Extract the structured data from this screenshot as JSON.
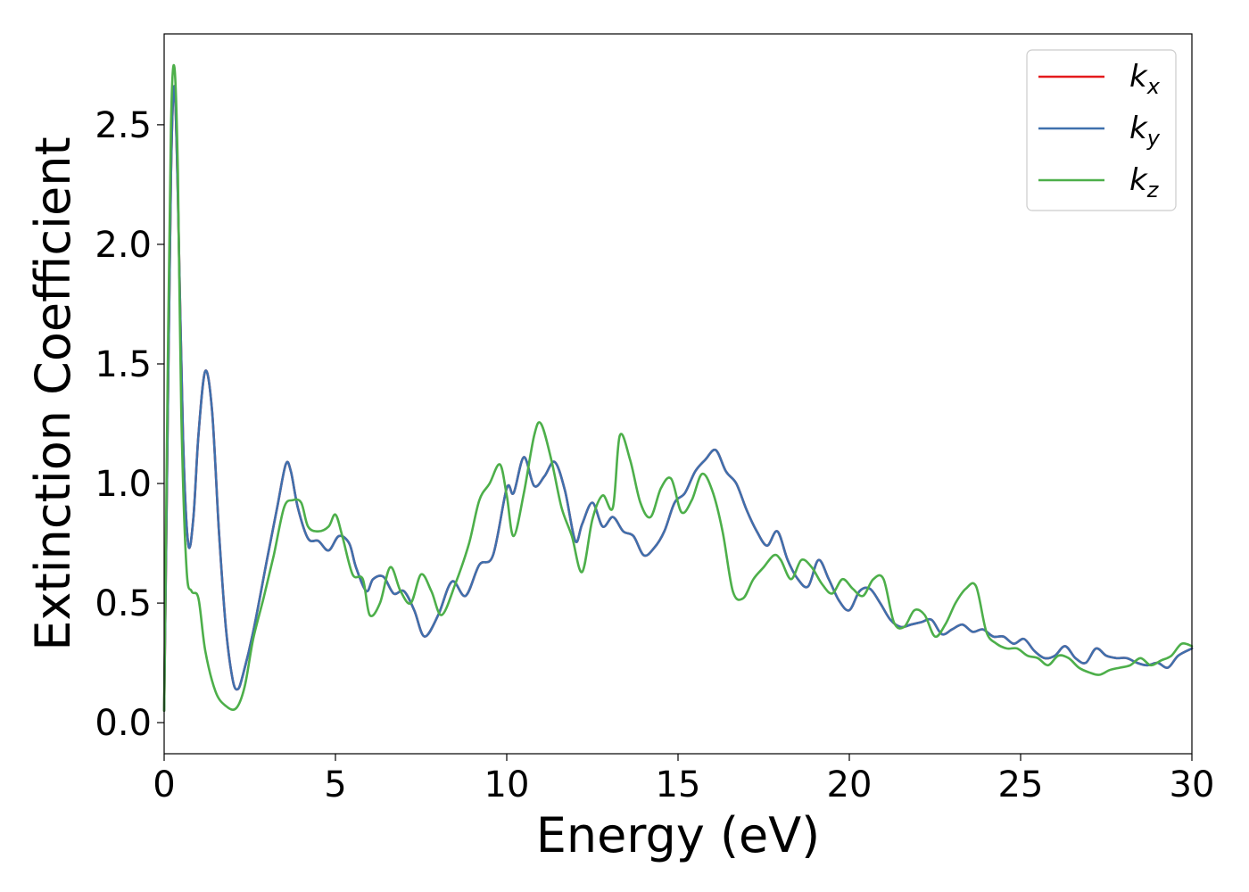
{
  "chart_data": {
    "type": "line",
    "title": "",
    "xlabel": "Energy (eV)",
    "ylabel": "Extinction Coefficient",
    "xlim": [
      0,
      30
    ],
    "ylim": [
      -0.13,
      2.88
    ],
    "xticks": [
      0,
      5,
      10,
      15,
      20,
      25,
      30
    ],
    "yticks": [
      0.0,
      0.5,
      1.0,
      1.5,
      2.0,
      2.5
    ],
    "xtick_labels": [
      "0",
      "5",
      "10",
      "15",
      "20",
      "25",
      "30"
    ],
    "ytick_labels": [
      "0.0",
      "0.5",
      "1.0",
      "1.5",
      "2.0",
      "2.5"
    ],
    "grid": false,
    "legend_position": "top-right",
    "series": [
      {
        "name": "k_x",
        "label_main": "k",
        "label_sub": "x",
        "color": "#e41a1c",
        "x": [
          0,
          0.1,
          0.2,
          0.3,
          0.4,
          0.55,
          0.7,
          0.85,
          1.0,
          1.2,
          1.4,
          1.6,
          1.8,
          2.0,
          2.15,
          2.3,
          2.6,
          3.0,
          3.3,
          3.55,
          3.7,
          3.9,
          4.2,
          4.5,
          4.8,
          5.1,
          5.4,
          5.6,
          5.9,
          6.1,
          6.4,
          6.7,
          7.0,
          7.3,
          7.6,
          8.0,
          8.4,
          8.8,
          9.2,
          9.6,
          10.0,
          10.2,
          10.5,
          10.8,
          11.1,
          11.4,
          11.7,
          12.0,
          12.2,
          12.5,
          12.8,
          13.1,
          13.4,
          13.7,
          14.0,
          14.3,
          14.6,
          14.9,
          15.2,
          15.5,
          15.8,
          16.1,
          16.4,
          16.7,
          17.0,
          17.3,
          17.6,
          17.9,
          18.2,
          18.5,
          18.8,
          19.1,
          19.4,
          19.7,
          20.0,
          20.3,
          20.6,
          20.9,
          21.2,
          21.5,
          21.8,
          22.1,
          22.4,
          22.7,
          23.0,
          23.3,
          23.6,
          23.9,
          24.2,
          24.5,
          24.8,
          25.1,
          25.4,
          25.7,
          26.0,
          26.3,
          26.6,
          26.9,
          27.2,
          27.5,
          27.8,
          28.1,
          28.4,
          28.7,
          29.0,
          29.3,
          29.6,
          30.0
        ],
        "values": [
          0.05,
          1.2,
          2.3,
          2.66,
          2.2,
          1.2,
          0.75,
          0.85,
          1.2,
          1.47,
          1.3,
          0.8,
          0.4,
          0.18,
          0.14,
          0.2,
          0.38,
          0.68,
          0.9,
          1.08,
          1.05,
          0.9,
          0.77,
          0.76,
          0.72,
          0.78,
          0.75,
          0.65,
          0.55,
          0.6,
          0.61,
          0.54,
          0.55,
          0.47,
          0.36,
          0.45,
          0.59,
          0.53,
          0.66,
          0.7,
          0.98,
          0.96,
          1.11,
          0.99,
          1.03,
          1.09,
          0.97,
          0.76,
          0.83,
          0.92,
          0.82,
          0.86,
          0.8,
          0.78,
          0.7,
          0.73,
          0.8,
          0.92,
          0.96,
          1.05,
          1.1,
          1.14,
          1.05,
          1.0,
          0.89,
          0.8,
          0.74,
          0.8,
          0.68,
          0.6,
          0.57,
          0.68,
          0.6,
          0.51,
          0.47,
          0.55,
          0.56,
          0.5,
          0.43,
          0.4,
          0.41,
          0.42,
          0.43,
          0.37,
          0.39,
          0.41,
          0.38,
          0.39,
          0.36,
          0.36,
          0.33,
          0.35,
          0.3,
          0.27,
          0.28,
          0.32,
          0.27,
          0.25,
          0.31,
          0.28,
          0.27,
          0.27,
          0.25,
          0.24,
          0.25,
          0.23,
          0.28,
          0.31
        ]
      },
      {
        "name": "k_y",
        "label_main": "k",
        "label_sub": "y",
        "color": "#3f70ad",
        "x": [
          0,
          0.1,
          0.2,
          0.3,
          0.4,
          0.55,
          0.7,
          0.85,
          1.0,
          1.2,
          1.4,
          1.6,
          1.8,
          2.0,
          2.15,
          2.3,
          2.6,
          3.0,
          3.3,
          3.55,
          3.7,
          3.9,
          4.2,
          4.5,
          4.8,
          5.1,
          5.4,
          5.6,
          5.9,
          6.1,
          6.4,
          6.7,
          7.0,
          7.3,
          7.6,
          8.0,
          8.4,
          8.8,
          9.2,
          9.6,
          10.0,
          10.2,
          10.5,
          10.8,
          11.1,
          11.4,
          11.7,
          12.0,
          12.2,
          12.5,
          12.8,
          13.1,
          13.4,
          13.7,
          14.0,
          14.3,
          14.6,
          14.9,
          15.2,
          15.5,
          15.8,
          16.1,
          16.4,
          16.7,
          17.0,
          17.3,
          17.6,
          17.9,
          18.2,
          18.5,
          18.8,
          19.1,
          19.4,
          19.7,
          20.0,
          20.3,
          20.6,
          20.9,
          21.2,
          21.5,
          21.8,
          22.1,
          22.4,
          22.7,
          23.0,
          23.3,
          23.6,
          23.9,
          24.2,
          24.5,
          24.8,
          25.1,
          25.4,
          25.7,
          26.0,
          26.3,
          26.6,
          26.9,
          27.2,
          27.5,
          27.8,
          28.1,
          28.4,
          28.7,
          29.0,
          29.3,
          29.6,
          30.0
        ],
        "values": [
          0.05,
          1.2,
          2.3,
          2.66,
          2.2,
          1.2,
          0.75,
          0.85,
          1.2,
          1.47,
          1.3,
          0.8,
          0.4,
          0.18,
          0.14,
          0.2,
          0.38,
          0.68,
          0.9,
          1.08,
          1.05,
          0.9,
          0.77,
          0.76,
          0.72,
          0.78,
          0.75,
          0.65,
          0.55,
          0.6,
          0.61,
          0.54,
          0.55,
          0.47,
          0.36,
          0.45,
          0.59,
          0.53,
          0.66,
          0.7,
          0.98,
          0.96,
          1.11,
          0.99,
          1.03,
          1.09,
          0.97,
          0.76,
          0.83,
          0.92,
          0.82,
          0.86,
          0.8,
          0.78,
          0.7,
          0.73,
          0.8,
          0.92,
          0.96,
          1.05,
          1.1,
          1.14,
          1.05,
          1.0,
          0.89,
          0.8,
          0.74,
          0.8,
          0.68,
          0.6,
          0.57,
          0.68,
          0.6,
          0.51,
          0.47,
          0.55,
          0.56,
          0.5,
          0.43,
          0.4,
          0.41,
          0.42,
          0.43,
          0.37,
          0.39,
          0.41,
          0.38,
          0.39,
          0.36,
          0.36,
          0.33,
          0.35,
          0.3,
          0.27,
          0.28,
          0.32,
          0.27,
          0.25,
          0.31,
          0.28,
          0.27,
          0.27,
          0.25,
          0.24,
          0.25,
          0.23,
          0.28,
          0.31
        ]
      },
      {
        "name": "k_z",
        "label_main": "k",
        "label_sub": "z",
        "color": "#4daf4a",
        "x": [
          0,
          0.1,
          0.2,
          0.3,
          0.4,
          0.5,
          0.65,
          0.8,
          1.0,
          1.2,
          1.5,
          1.8,
          2.1,
          2.35,
          2.6,
          2.9,
          3.2,
          3.5,
          3.75,
          4.0,
          4.2,
          4.5,
          4.8,
          5.0,
          5.2,
          5.5,
          5.8,
          6.0,
          6.3,
          6.6,
          6.9,
          7.2,
          7.5,
          7.8,
          8.1,
          8.5,
          8.9,
          9.2,
          9.5,
          9.8,
          10.0,
          10.2,
          10.5,
          10.8,
          11.0,
          11.3,
          11.6,
          11.9,
          12.2,
          12.5,
          12.8,
          13.1,
          13.3,
          13.6,
          13.9,
          14.2,
          14.5,
          14.8,
          15.1,
          15.4,
          15.7,
          16.0,
          16.3,
          16.6,
          16.9,
          17.2,
          17.5,
          17.8,
          18.0,
          18.3,
          18.6,
          18.9,
          19.2,
          19.5,
          19.8,
          20.1,
          20.4,
          20.7,
          21.0,
          21.3,
          21.6,
          21.9,
          22.2,
          22.5,
          22.8,
          23.1,
          23.4,
          23.7,
          24.0,
          24.3,
          24.6,
          24.9,
          25.2,
          25.5,
          25.8,
          26.1,
          26.4,
          26.7,
          27.0,
          27.3,
          27.6,
          27.9,
          28.2,
          28.5,
          28.8,
          29.1,
          29.4,
          29.7,
          30.0
        ],
        "values": [
          0.05,
          1.4,
          2.5,
          2.74,
          2.3,
          1.3,
          0.65,
          0.55,
          0.52,
          0.3,
          0.13,
          0.07,
          0.06,
          0.15,
          0.35,
          0.52,
          0.7,
          0.9,
          0.93,
          0.92,
          0.82,
          0.8,
          0.82,
          0.87,
          0.78,
          0.62,
          0.6,
          0.45,
          0.5,
          0.65,
          0.55,
          0.5,
          0.62,
          0.55,
          0.45,
          0.58,
          0.75,
          0.93,
          1.0,
          1.08,
          0.95,
          0.78,
          0.96,
          1.2,
          1.25,
          1.1,
          0.9,
          0.78,
          0.63,
          0.85,
          0.95,
          0.9,
          1.2,
          1.1,
          0.92,
          0.86,
          0.98,
          1.02,
          0.88,
          0.93,
          1.04,
          0.97,
          0.8,
          0.55,
          0.52,
          0.6,
          0.65,
          0.7,
          0.68,
          0.6,
          0.68,
          0.65,
          0.58,
          0.54,
          0.6,
          0.56,
          0.53,
          0.6,
          0.6,
          0.42,
          0.4,
          0.47,
          0.45,
          0.36,
          0.41,
          0.5,
          0.56,
          0.57,
          0.38,
          0.33,
          0.31,
          0.31,
          0.28,
          0.27,
          0.24,
          0.28,
          0.27,
          0.23,
          0.21,
          0.2,
          0.22,
          0.23,
          0.24,
          0.27,
          0.24,
          0.26,
          0.28,
          0.33,
          0.32
        ]
      }
    ]
  }
}
